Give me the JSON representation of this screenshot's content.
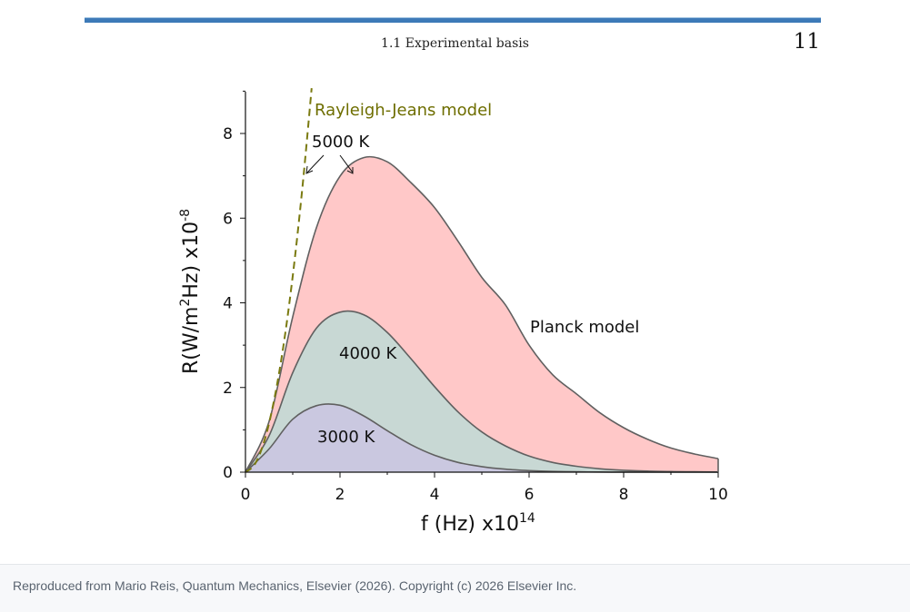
{
  "header": {
    "section": "1.1  Experimental basis",
    "page_number": "11"
  },
  "footer": {
    "text": "Reproduced from Mario Reis, Quantum Mechanics, Elsevier (2026). Copyright (c) 2026 Elsevier Inc."
  },
  "colors": {
    "fill_5000": "#ffc8c8",
    "fill_4000": "#c8d8d4",
    "fill_3000": "#cac8e0",
    "planck_line": "#606060",
    "rj_line": "#7a7a10",
    "label_rj": "#6e6e00"
  },
  "chart_data": {
    "type": "area",
    "xlabel": "f (Hz) x10",
    "xlabel_exp": "14",
    "ylabel_main": "R(W/m",
    "ylabel_sup": "2",
    "ylabel_mid": "Hz) x10",
    "ylabel_exp": "-8",
    "xlim": [
      0,
      10
    ],
    "ylim": [
      0,
      9
    ],
    "xticks": [
      0,
      2,
      4,
      6,
      8,
      10
    ],
    "yticks": [
      0,
      2,
      4,
      6,
      8
    ],
    "grid": false,
    "series": [
      {
        "name": "5000 K",
        "fill": "#ffc8c8",
        "x": [
          0,
          0.5,
          1,
          1.5,
          2,
          2.5,
          3,
          3.5,
          4,
          4.5,
          5,
          5.5,
          6,
          6.5,
          7,
          7.5,
          8,
          8.5,
          9,
          9.5,
          10
        ],
        "values": [
          0,
          1.2,
          3.67,
          5.77,
          6.99,
          7.43,
          7.33,
          6.84,
          6.25,
          5.45,
          4.6,
          3.95,
          3.0,
          2.3,
          1.85,
          1.4,
          1.05,
          0.78,
          0.57,
          0.43,
          0.32
        ]
      },
      {
        "name": "4000 K",
        "fill": "#c8d8d4",
        "x": [
          0,
          0.5,
          1,
          1.5,
          2,
          2.5,
          3,
          3.5,
          4,
          4.5,
          5,
          5.5,
          6,
          6.5,
          7,
          7.5,
          8,
          8.5,
          9,
          9.5,
          10
        ],
        "values": [
          0,
          0.86,
          2.35,
          3.4,
          3.78,
          3.72,
          3.3,
          2.68,
          2.02,
          1.42,
          0.95,
          0.62,
          0.38,
          0.23,
          0.14,
          0.08,
          0.045,
          0.025,
          0.014,
          0.008,
          0.004
        ]
      },
      {
        "name": "3000 K",
        "fill": "#cac8e0",
        "x": [
          0,
          0.5,
          1,
          1.5,
          2,
          2.5,
          3,
          3.5,
          4,
          4.5,
          5,
          5.5,
          6,
          6.5,
          7,
          7.5,
          8,
          8.5,
          9,
          9.5,
          10
        ],
        "values": [
          0,
          0.55,
          1.25,
          1.57,
          1.58,
          1.33,
          0.98,
          0.65,
          0.4,
          0.23,
          0.13,
          0.07,
          0.036,
          0.018,
          0.009,
          0.004,
          0.002,
          0.001,
          0.0005,
          0.0002,
          0.0001
        ]
      }
    ],
    "rayleigh_jeans": {
      "x": [
        0,
        0.2,
        0.4,
        0.6,
        0.8,
        1.0,
        1.2,
        1.4
      ],
      "values": [
        0,
        0.19,
        0.74,
        1.67,
        2.96,
        4.63,
        6.67,
        9.07
      ]
    },
    "labels": {
      "rayleigh_jeans": "Rayleigh-Jeans model",
      "t5000": "5000 K",
      "t4000": "4000 K",
      "t3000": "3000 K",
      "planck": "Planck model"
    }
  }
}
